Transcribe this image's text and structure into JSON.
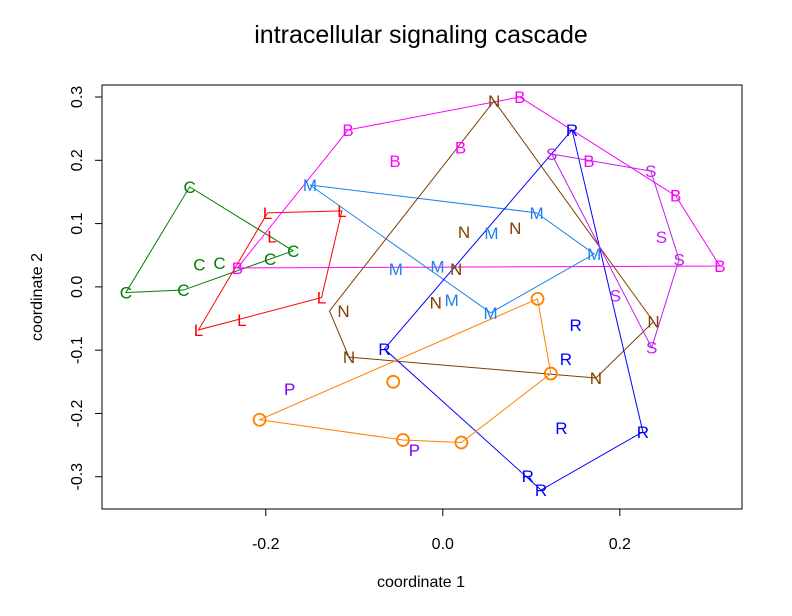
{
  "chart_data": {
    "type": "scatter",
    "title": "intracellular signaling cascade",
    "xlabel": "coordinate 1",
    "ylabel": "coordinate 2",
    "xlim": [
      -0.385,
      0.338
    ],
    "ylim": [
      -0.351,
      0.319
    ],
    "xticks": [
      -0.2,
      0.0,
      0.2
    ],
    "xtick_labels": [
      "-0.2",
      "0.0",
      "0.2"
    ],
    "yticks": [
      -0.3,
      -0.2,
      -0.1,
      0.0,
      0.1,
      0.2,
      0.3
    ],
    "ytick_labels": [
      "-0.3",
      "-0.2",
      "-0.1",
      "0.0",
      "0.1",
      "0.2",
      "0.3"
    ],
    "grid": false,
    "series": [
      {
        "name": "C",
        "color": "#008000",
        "hull": [
          0,
          6,
          2,
          1
        ],
        "points": [
          [
            -0.286,
            0.158
          ],
          [
            -0.358,
            -0.009
          ],
          [
            -0.293,
            -0.005
          ],
          [
            -0.275,
            0.035
          ],
          [
            -0.268,
            0.038
          ],
          [
            -0.195,
            0.044
          ],
          [
            -0.169,
            0.057
          ]
        ]
      },
      {
        "name": "L",
        "color": "#ff0000",
        "hull": [
          0,
          1,
          3,
          5
        ],
        "points": [
          [
            -0.198,
            0.117
          ],
          [
            -0.114,
            0.12
          ],
          [
            -0.193,
            0.054
          ],
          [
            -0.137,
            -0.017
          ],
          [
            -0.227,
            -0.052
          ],
          [
            -0.276,
            -0.068
          ]
        ]
      },
      {
        "name": "B",
        "color": "#ff00ff",
        "hull": [
          7,
          0,
          3,
          5,
          6
        ],
        "points": [
          [
            -0.107,
            0.248
          ],
          [
            -0.054,
            0.199
          ],
          [
            0.02,
            0.22
          ],
          [
            0.087,
            0.3
          ],
          [
            0.165,
            0.199
          ],
          [
            0.263,
            0.144
          ],
          [
            0.313,
            0.033
          ],
          [
            -0.232,
            0.03
          ]
        ]
      },
      {
        "name": "M",
        "color": "#1e80f0",
        "hull": [
          0,
          6,
          7,
          4
        ],
        "points": [
          [
            -0.15,
            0.161
          ],
          [
            -0.053,
            0.028
          ],
          [
            -0.006,
            0.032
          ],
          [
            0.01,
            -0.021
          ],
          [
            0.054,
            -0.041
          ],
          [
            0.055,
            0.085
          ],
          [
            0.106,
            0.117
          ],
          [
            0.171,
            0.052
          ]
        ]
      },
      {
        "name": "N",
        "color": "#804000",
        "hull": [
          0,
          8,
          7,
          6,
          5
        ],
        "points": [
          [
            0.058,
            0.294
          ],
          [
            0.024,
            0.087
          ],
          [
            0.066,
            0.093
          ],
          [
            0.015,
            0.028
          ],
          [
            -0.008,
            -0.025
          ],
          [
            -0.128,
            -0.038
          ],
          [
            -0.106,
            -0.111
          ],
          [
            0.173,
            -0.144
          ],
          [
            0.238,
            -0.055
          ]
        ]
      },
      {
        "name": "R",
        "color": "#0000ff",
        "hull": [
          0,
          5,
          7,
          1
        ],
        "points": [
          [
            0.146,
            0.248
          ],
          [
            -0.066,
            -0.098
          ],
          [
            0.15,
            -0.06
          ],
          [
            0.139,
            -0.114
          ],
          [
            0.134,
            -0.223
          ],
          [
            0.226,
            -0.229
          ],
          [
            0.096,
            -0.299
          ],
          [
            0.111,
            -0.321
          ]
        ]
      },
      {
        "name": "S",
        "color": "#c020f0",
        "hull": [
          0,
          1,
          3,
          5
        ],
        "points": [
          [
            0.123,
            0.21
          ],
          [
            0.235,
            0.183
          ],
          [
            0.247,
            0.079
          ],
          [
            0.267,
            0.043
          ],
          [
            0.195,
            -0.014
          ],
          [
            0.236,
            -0.096
          ]
        ]
      },
      {
        "name": "O",
        "color": "#ff8000",
        "hull": [
          0,
          2,
          5,
          4,
          3
        ],
        "points": [
          [
            0.107,
            -0.019
          ],
          [
            -0.056,
            -0.15
          ],
          [
            0.122,
            -0.137
          ],
          [
            -0.207,
            -0.21
          ],
          [
            -0.045,
            -0.242
          ],
          [
            0.021,
            -0.246
          ]
        ]
      },
      {
        "name": "P",
        "color": "#8000ff",
        "hull": [],
        "points": [
          [
            -0.173,
            -0.161
          ],
          [
            -0.032,
            -0.258
          ]
        ]
      }
    ]
  }
}
